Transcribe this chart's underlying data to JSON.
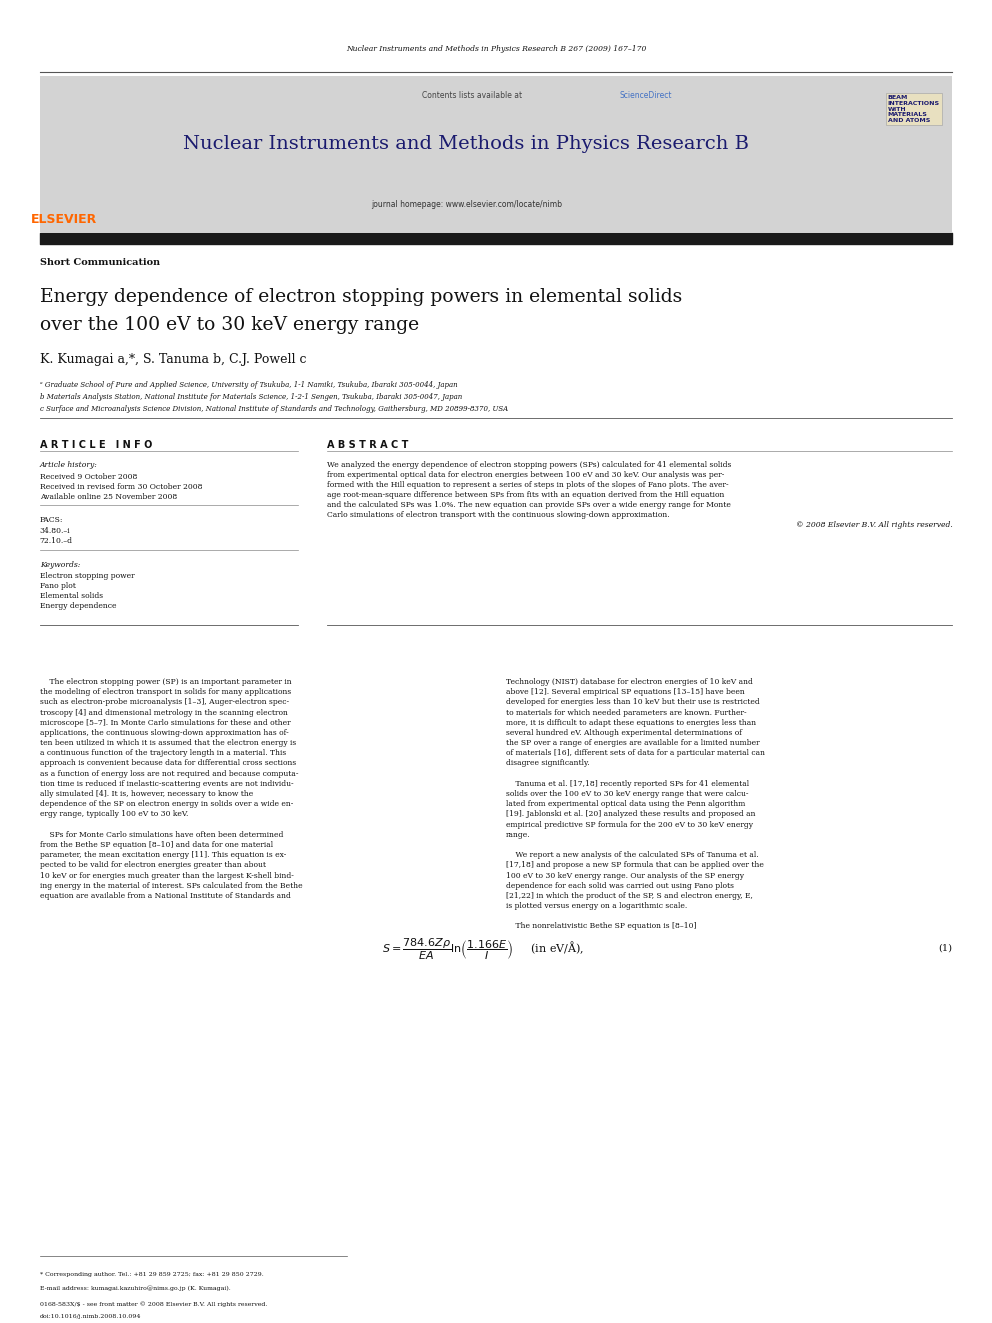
{
  "page_width": 9.92,
  "page_height": 13.23,
  "background_color": "#ffffff",
  "top_journal_ref": "Nuclear Instruments and Methods in Physics Research B 267 (2009) 167–170",
  "journal_name": "Nuclear Instruments and Methods in Physics Research B",
  "contents_line": "Contents lists available at ScienceDirect",
  "journal_homepage": "journal homepage: www.elsevier.com/locate/nimb",
  "section_type": "Short Communication",
  "article_title_line1": "Energy dependence of electron stopping powers in elemental solids",
  "article_title_line2": "over the 100 eV to 30 keV energy range",
  "authors": "K. Kumagai a,*, S. Tanuma b, C.J. Powell c",
  "affil_a": "ᵃ Graduate School of Pure and Applied Science, University of Tsukuba, 1-1 Namiki, Tsukuba, Ibaraki 305-0044, Japan",
  "affil_b": "b Materials Analysis Station, National Institute for Materials Science, 1-2-1 Sengen, Tsukuba, Ibaraki 305-0047, Japan",
  "affil_c": "c Surface and Microanalysis Science Division, National Institute of Standards and Technology, Gaithersburg, MD 20899-8370, USA",
  "article_info_header": "A R T I C L E   I N F O",
  "abstract_header": "A B S T R A C T",
  "article_history_label": "Article history:",
  "received": "Received 9 October 2008",
  "revised": "Received in revised form 30 October 2008",
  "available": "Available online 25 November 2008",
  "pacs_label": "PACS:",
  "pacs1": "34.80.–i",
  "pacs2": "72.10.–d",
  "keywords_label": "Keywords:",
  "keyword1": "Electron stopping power",
  "keyword2": "Fano plot",
  "keyword3": "Elemental solids",
  "keyword4": "Energy dependence",
  "copyright_text": "© 2008 Elsevier B.V. All rights reserved.",
  "footnote_star": "* Corresponding author. Tel.: +81 29 859 2725; fax: +81 29 850 2729.",
  "footnote_email": "E-mail address: kumagai.kazuhiro@nims.go.jp (K. Kumagai).",
  "footnote_issn": "0168-583X/$ - see front matter © 2008 Elsevier B.V. All rights reserved.",
  "footnote_doi": "doi:10.1016/j.nimb.2008.10.094",
  "header_bg_color": "#d3d3d3",
  "elsevier_color": "#ff6600",
  "sciencedirect_color": "#4472c4",
  "thick_bar_color": "#1a1a1a",
  "abstract_lines": [
    "We analyzed the energy dependence of electron stopping powers (SPs) calculated for 41 elemental solids",
    "from experimental optical data for electron energies between 100 eV and 30 keV. Our analysis was per-",
    "formed with the Hill equation to represent a series of steps in plots of the slopes of Fano plots. The aver-",
    "age root-mean-square difference between SPs from fits with an equation derived from the Hill equation",
    "and the calculated SPs was 1.0%. The new equation can provide SPs over a wide energy range for Monte",
    "Carlo simulations of electron transport with the continuous slowing-down approximation."
  ],
  "col1_body_lines": [
    "    The electron stopping power (SP) is an important parameter in",
    "the modeling of electron transport in solids for many applications",
    "such as electron-probe microanalysis [1–3], Auger-electron spec-",
    "troscopy [4] and dimensional metrology in the scanning electron",
    "microscope [5–7]. In Monte Carlo simulations for these and other",
    "applications, the continuous slowing-down approximation has of-",
    "ten been utilized in which it is assumed that the electron energy is",
    "a continuous function of the trajectory length in a material. This",
    "approach is convenient because data for differential cross sections",
    "as a function of energy loss are not required and because computa-",
    "tion time is reduced if inelastic-scattering events are not individu-",
    "ally simulated [4]. It is, however, necessary to know the",
    "dependence of the SP on electron energy in solids over a wide en-",
    "ergy range, typically 100 eV to 30 keV.",
    "",
    "    SPs for Monte Carlo simulations have often been determined",
    "from the Bethe SP equation [8–10] and data for one material",
    "parameter, the mean excitation energy [11]. This equation is ex-",
    "pected to be valid for electron energies greater than about",
    "10 keV or for energies much greater than the largest K-shell bind-",
    "ing energy in the material of interest. SPs calculated from the Bethe",
    "equation are available from a National Institute of Standards and"
  ],
  "col2_body_lines": [
    "Technology (NIST) database for electron energies of 10 keV and",
    "above [12]. Several empirical SP equations [13–15] have been",
    "developed for energies less than 10 keV but their use is restricted",
    "to materials for which needed parameters are known. Further-",
    "more, it is difficult to adapt these equations to energies less than",
    "several hundred eV. Although experimental determinations of",
    "the SP over a range of energies are available for a limited number",
    "of materials [16], different sets of data for a particular material can",
    "disagree significantly.",
    "",
    "    Tanuma et al. [17,18] recently reported SPs for 41 elemental",
    "solids over the 100 eV to 30 keV energy range that were calcu-",
    "lated from experimental optical data using the Penn algorithm",
    "[19]. Jablonski et al. [20] analyzed these results and proposed an",
    "empirical predictive SP formula for the 200 eV to 30 keV energy",
    "range.",
    "",
    "    We report a new analysis of the calculated SPs of Tanuma et al.",
    "[17,18] and propose a new SP formula that can be applied over the",
    "100 eV to 30 keV energy range. Our analysis of the SP energy",
    "dependence for each solid was carried out using Fano plots",
    "[21,22] in which the product of the SP, S and electron energy, E,",
    "is plotted versus energy on a logarithmic scale.",
    "",
    "    The nonrelativistic Bethe SP equation is [8–10]"
  ]
}
